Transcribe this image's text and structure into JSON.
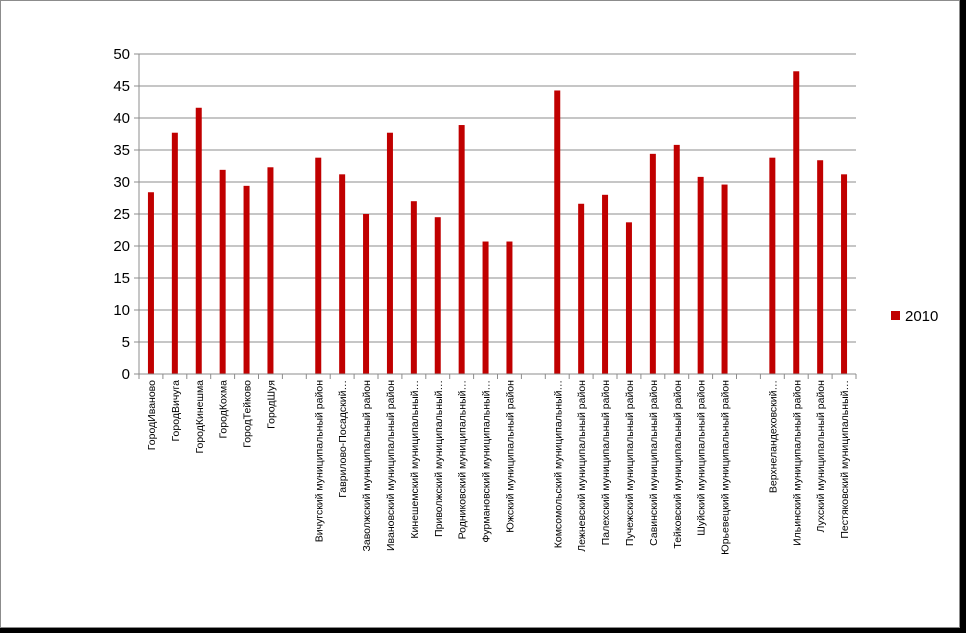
{
  "chart_data": {
    "type": "bar",
    "ylim": [
      0,
      50
    ],
    "yticks": [
      0,
      5,
      10,
      15,
      20,
      25,
      30,
      35,
      40,
      45,
      50
    ],
    "grid": true,
    "legend_position": "right",
    "colors": {
      "bar": "#C00000",
      "grid": "#8c8c8c",
      "axis": "#8c8c8c"
    },
    "categories": [
      "ГородИваново",
      "ГородВичуга",
      "ГородКинешма",
      "ГородКохма",
      "ГородТейково",
      "ГородШуя",
      "",
      "Вичугский муниципальный район",
      "Гаврилово-Посадский…",
      "Заволжский муниципальный район",
      "Ивановский муниципальный район",
      "Кинешемский муниципальный…",
      "Приволжский муниципальный…",
      "Родниковский муниципальный…",
      "Фурмановский муниципальный…",
      "Южский муниципальный район",
      "",
      "Комсомольский муниципальный…",
      "Лежневский муниципальный район",
      "Палехский муниципальный район",
      "Пучежский муниципальный район",
      "Савинский муниципальный район",
      "Тейковский муниципальный район",
      "Шуйский муниципальный район",
      "Юрьевецкий муниципальный район",
      "",
      "Верхнеландеховский…",
      "Ильинский муниципальный район",
      "Лухский муниципальный район",
      "Пестяковский муниципальный…"
    ],
    "series": [
      {
        "name": "2010",
        "values": [
          28.4,
          37.7,
          41.6,
          31.9,
          29.4,
          32.3,
          null,
          33.8,
          31.2,
          25.0,
          37.7,
          27.0,
          24.5,
          38.9,
          20.7,
          20.7,
          null,
          44.3,
          26.6,
          28.0,
          23.7,
          34.4,
          35.8,
          30.8,
          29.6,
          null,
          33.8,
          47.3,
          33.4,
          31.2
        ]
      }
    ]
  }
}
